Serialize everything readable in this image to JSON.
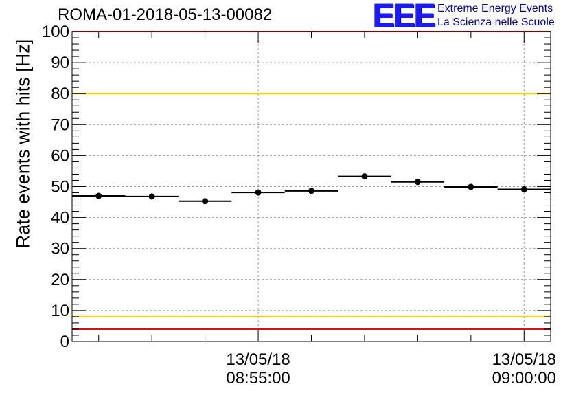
{
  "chart_data": {
    "type": "scatter",
    "title": "ROMA-01-2018-05-13-00082",
    "ylabel": "Rate events with hits [Hz]",
    "xlabel": "",
    "ylim": [
      0,
      100
    ],
    "yticks": [
      0,
      10,
      20,
      30,
      40,
      50,
      60,
      70,
      80,
      90,
      100
    ],
    "xlim": [
      "08:51:30",
      "09:00:30"
    ],
    "x_tick_labels": [
      {
        "x": "08:55:00",
        "date": "13/05/18",
        "time": "08:55:00"
      },
      {
        "x": "09:00:00",
        "date": "13/05/18",
        "time": "09:00:00"
      }
    ],
    "grid": true,
    "points": [
      {
        "x": "08:52:00",
        "y": 47.0
      },
      {
        "x": "08:53:00",
        "y": 46.8
      },
      {
        "x": "08:54:00",
        "y": 45.3
      },
      {
        "x": "08:55:00",
        "y": 48.1
      },
      {
        "x": "08:56:00",
        "y": 48.6
      },
      {
        "x": "08:57:00",
        "y": 53.3
      },
      {
        "x": "08:58:00",
        "y": 51.5
      },
      {
        "x": "08:59:00",
        "y": 49.9
      },
      {
        "x": "09:00:00",
        "y": 49.1
      }
    ],
    "bin_width_minutes": 1,
    "reference_lines": [
      {
        "y": 100,
        "color": "#ff0000"
      },
      {
        "y": 80,
        "color": "#ffcc00"
      },
      {
        "y": 8,
        "color": "#ffcc00"
      },
      {
        "y": 4,
        "color": "#ff0000"
      }
    ]
  },
  "logo": {
    "mark": "EEE",
    "line1": "Extreme Energy Events",
    "line2": "La Scienza nelle Scuole",
    "color": "#0000cc"
  }
}
